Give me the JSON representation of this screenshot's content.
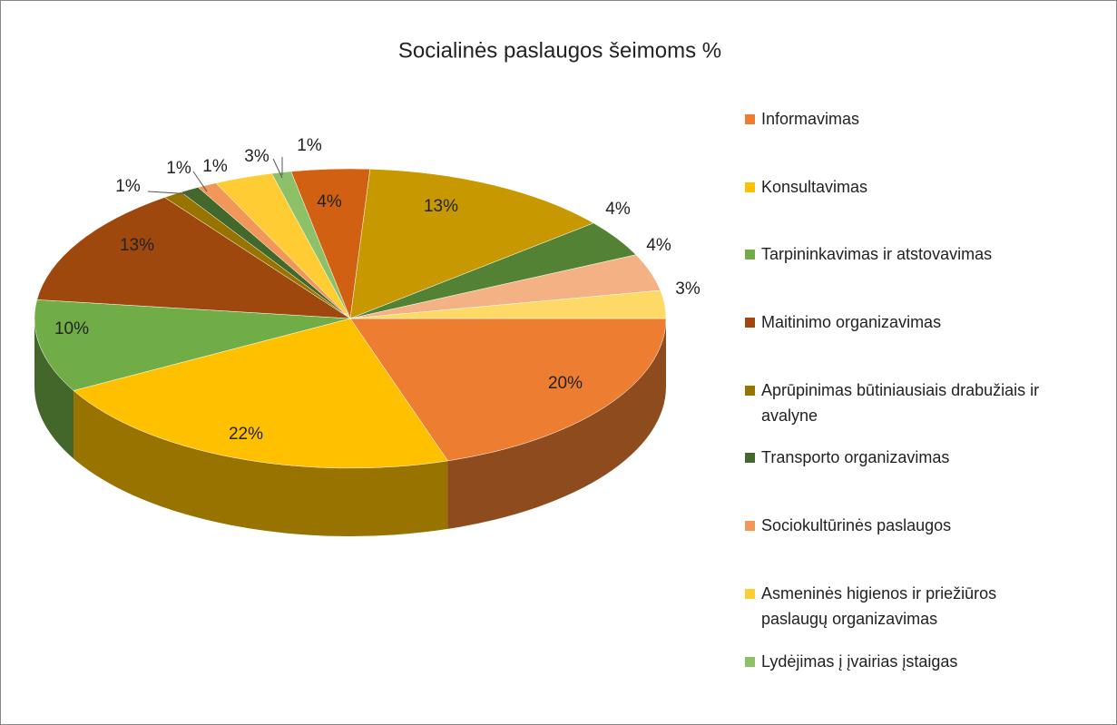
{
  "chart_data": {
    "type": "pie3d",
    "title": "Socialinės paslaugos šeimoms %",
    "categories": [
      "Informavimas",
      "Konsultavimas",
      "Tarpininkavimas ir atstovavimas",
      "Maitinimo organizavimas",
      "Aprūpinimas būtiniausiais drabužiais ir avalyne",
      "Transporto organizavimas",
      "Sociokultūrinės paslaugos",
      "Asmeninės higienos ir priežiūros paslaugų organizavimas",
      "Lydėjimas į įvairias įstaigas",
      null,
      null,
      null,
      null,
      null
    ],
    "values": [
      20,
      22,
      10,
      13,
      1,
      1,
      1,
      3,
      1,
      4,
      13,
      4,
      4,
      3
    ],
    "value_labels": [
      "20%",
      "22%",
      "10%",
      "13%",
      "1%",
      "1%",
      "1%",
      "3%",
      "1%",
      "4%",
      "13%",
      "4%",
      "4%",
      "3%"
    ],
    "colors": [
      "#ED7D31",
      "#FFC000",
      "#70AD47",
      "#9E480E",
      "#997300",
      "#43682B",
      "#F1975A",
      "#FFCD33",
      "#8CC168",
      "#D26012",
      "#C89800",
      "#548235",
      "#F4B183",
      "#FFD966"
    ],
    "legend": "right"
  }
}
